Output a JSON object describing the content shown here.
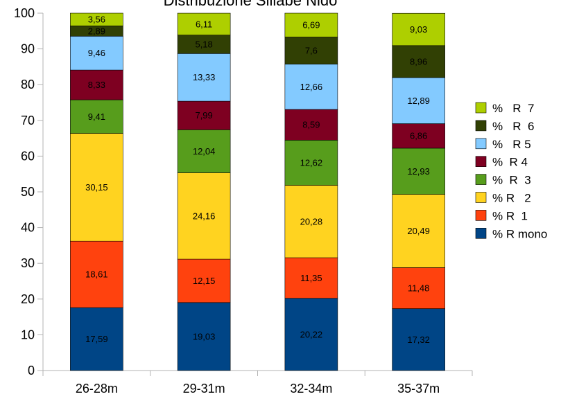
{
  "chart_data": {
    "type": "bar",
    "stacked": true,
    "title": "Distribuzione Sillabe Nido",
    "xlabel": "",
    "ylabel": "",
    "ylim": [
      0,
      100
    ],
    "yticks": [
      "0",
      "10",
      "20",
      "30",
      "40",
      "50",
      "60",
      "70",
      "80",
      "90",
      "100"
    ],
    "categories": [
      "26-28m",
      "29-31m",
      "32-34m",
      "35-37m"
    ],
    "series": [
      {
        "name": "% R mono",
        "color": "#004586",
        "values": [
          17.59,
          19.03,
          20.22,
          17.32
        ],
        "labels": [
          "17,59",
          "19,03",
          "20,22",
          "17,32"
        ]
      },
      {
        "name": "% R  1",
        "color": "#ff420e",
        "values": [
          18.61,
          12.15,
          11.35,
          11.48
        ],
        "labels": [
          "18,61",
          "12,15",
          "11,35",
          "11,48"
        ]
      },
      {
        "name": "% R   2",
        "color": "#ffd320",
        "values": [
          30.15,
          24.16,
          20.28,
          20.49
        ],
        "labels": [
          "30,15",
          "24,16",
          "20,28",
          "20,49"
        ]
      },
      {
        "name": "%  R  3",
        "color": "#579d1c",
        "values": [
          9.41,
          12.04,
          12.62,
          12.93
        ],
        "labels": [
          "9,41",
          "12,04",
          "12,62",
          "12,93"
        ]
      },
      {
        "name": "%  R 4",
        "color": "#7e0021",
        "values": [
          8.33,
          7.99,
          8.59,
          6.86
        ],
        "labels": [
          "8,33",
          "7,99",
          "8,59",
          "6,86"
        ]
      },
      {
        "name": "%   R 5",
        "color": "#83caff",
        "values": [
          9.46,
          13.33,
          12.66,
          12.89
        ],
        "labels": [
          "9,46",
          "13,33",
          "12,66",
          "12,89"
        ]
      },
      {
        "name": "%   R  6",
        "color": "#314004",
        "values": [
          2.89,
          5.18,
          7.6,
          8.96
        ],
        "labels": [
          "2,89",
          "5,18",
          "7,6",
          "8,96"
        ]
      },
      {
        "name": "%   R  7",
        "color": "#aecf00",
        "values": [
          3.56,
          6.11,
          6.69,
          9.03
        ],
        "labels": [
          "3,56",
          "6,11",
          "6,69",
          "9,03"
        ]
      }
    ],
    "legend_position": "right",
    "grid": false
  }
}
